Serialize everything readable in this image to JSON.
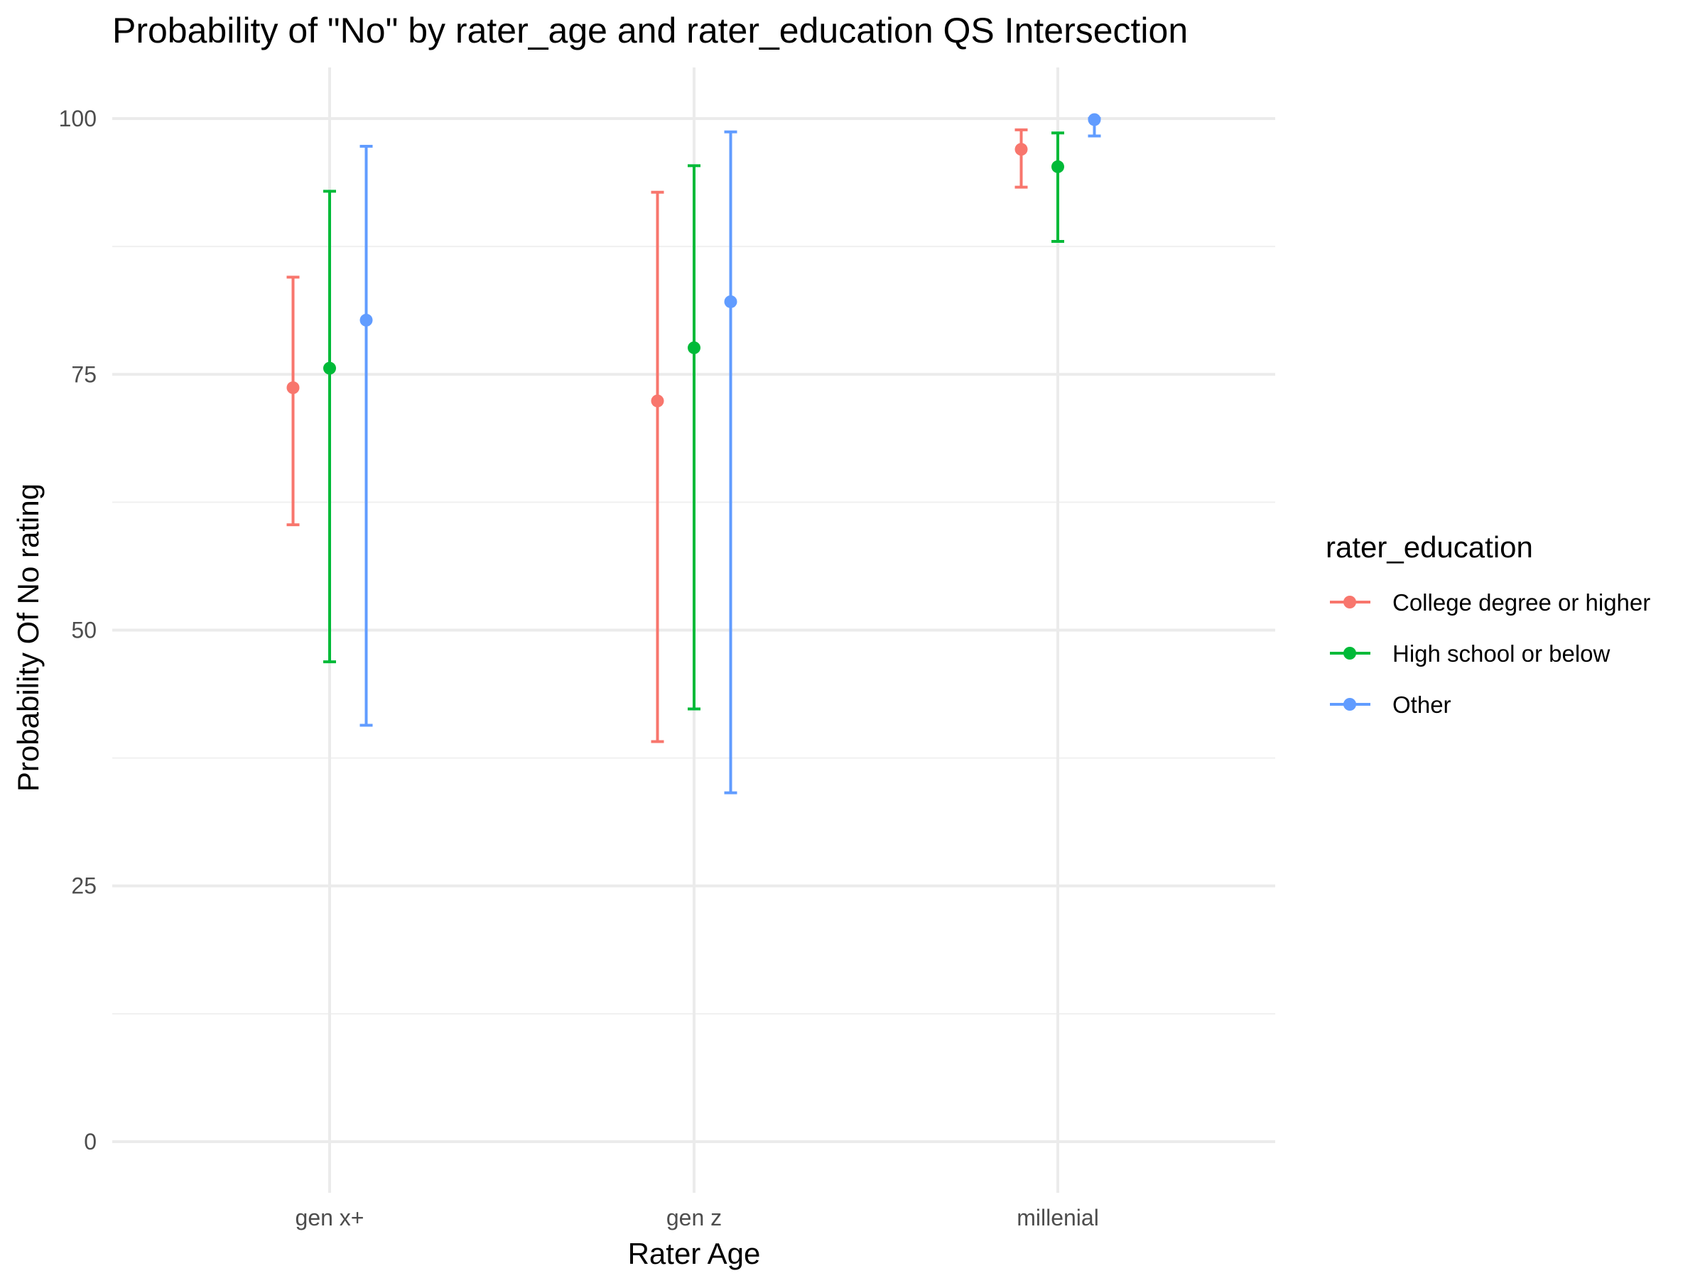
{
  "chart_data": {
    "type": "errorbar-point",
    "title": "Probability of \"No\" by rater_age and  rater_education  QS Intersection",
    "xlabel": "Rater Age",
    "ylabel": "Probability Of No rating",
    "categories": [
      "gen x+",
      "gen z",
      "millenial"
    ],
    "ylim": [
      -5,
      105
    ],
    "yticks": [
      0,
      25,
      50,
      75,
      100
    ],
    "yticks_minor": [
      12.5,
      37.5,
      62.5,
      87.5
    ],
    "grid": true,
    "legend": {
      "title": "rater_education",
      "position": "right"
    },
    "series": [
      {
        "name": "College degree or higher",
        "color": "#F8766D",
        "values": [
          73.7,
          72.4,
          97.0
        ],
        "lower": [
          60.3,
          39.1,
          93.3
        ],
        "upper": [
          84.5,
          92.8,
          98.9
        ]
      },
      {
        "name": "High school or below",
        "color": "#00BA38",
        "values": [
          75.6,
          77.6,
          95.3
        ],
        "lower": [
          46.9,
          42.3,
          88.0
        ],
        "upper": [
          92.9,
          95.4,
          98.6
        ]
      },
      {
        "name": "Other",
        "color": "#619CFF",
        "values": [
          80.3,
          82.1,
          99.9
        ],
        "lower": [
          40.7,
          34.1,
          98.3
        ],
        "upper": [
          97.3,
          98.7,
          100.0
        ]
      }
    ]
  }
}
